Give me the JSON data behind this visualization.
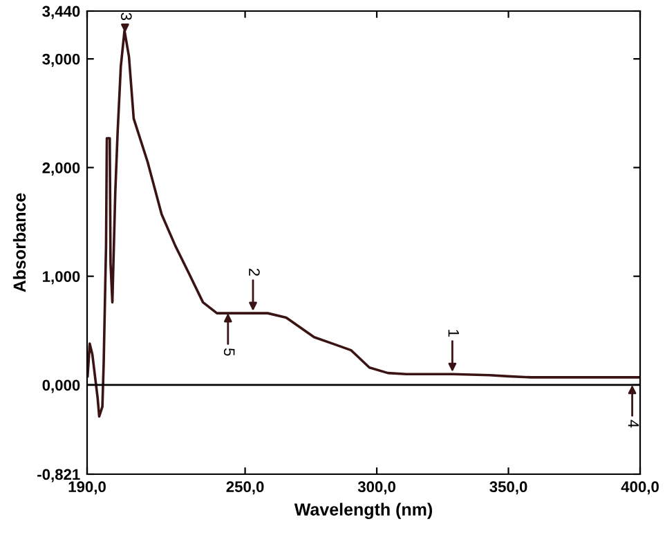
{
  "chart_data": {
    "type": "line",
    "xlabel": "Wavelength (nm)",
    "ylabel": "Absorbance",
    "x": [
      190.2,
      191,
      192,
      194,
      194.6,
      195.8,
      196.3,
      197.2,
      197.5,
      198.6,
      198.9,
      199.6,
      200.7,
      201.6,
      202.8,
      204.2,
      205.9,
      207.7,
      213,
      218.3,
      223.5,
      228.8,
      234,
      239.3,
      248,
      258.6,
      265.6,
      276.2,
      283.2,
      290.2,
      297.2,
      304.2,
      311.2,
      328.7,
      342.8,
      349.8,
      358.6,
      376.1,
      400
    ],
    "series": [
      {
        "color": "#3a1414",
        "values": [
          0.08,
          0.38,
          0.28,
          -0.12,
          -0.29,
          -0.2,
          0.2,
          1.28,
          2.27,
          2.27,
          1.12,
          0.76,
          1.77,
          2.33,
          2.93,
          3.26,
          3.02,
          2.45,
          2.05,
          1.57,
          1.28,
          1.02,
          0.76,
          0.66,
          0.66,
          0.66,
          0.62,
          0.44,
          0.38,
          0.32,
          0.16,
          0.11,
          0.1,
          0.1,
          0.09,
          0.08,
          0.07,
          0.07,
          0.07
        ]
      }
    ],
    "xlim": [
      190,
      400
    ],
    "ylim": [
      -0.821,
      3.44
    ],
    "xticks": [
      {
        "value": 190,
        "label": "190,0"
      },
      {
        "value": 250,
        "label": "250,0"
      },
      {
        "value": 300,
        "label": "300,0"
      },
      {
        "value": 350,
        "label": "350,0"
      },
      {
        "value": 400,
        "label": "400,0"
      }
    ],
    "yticks": [
      {
        "value": -0.821,
        "label": "-0,821"
      },
      {
        "value": 0,
        "label": "0,000"
      },
      {
        "value": 1,
        "label": "1,000"
      },
      {
        "value": 2,
        "label": "2,000"
      },
      {
        "value": 3,
        "label": "3,000"
      },
      {
        "value": 3.44,
        "label": "3,440"
      }
    ],
    "ref_lines": [
      {
        "axis": "y",
        "value": 0,
        "color": "#000000"
      }
    ],
    "annotations": [
      {
        "text": "1",
        "x": 328.7,
        "y": 0.12
      },
      {
        "text": "2",
        "x": 253,
        "y": 0.68
      },
      {
        "text": "3",
        "x": 204.4,
        "y": 3.24
      },
      {
        "text": "4",
        "x": 397,
        "y": 0
      },
      {
        "text": "5",
        "x": 243.5,
        "y": 0.66
      }
    ],
    "grid": false
  }
}
